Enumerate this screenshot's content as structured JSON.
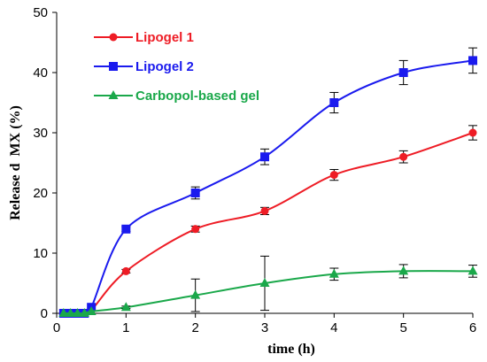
{
  "chart_data": {
    "type": "line",
    "xlabel": "time (h)",
    "ylabel": "Release d  MX (%)",
    "xlim": [
      0,
      6
    ],
    "ylim": [
      0,
      50
    ],
    "xticks": [
      "0",
      "1",
      "2",
      "3",
      "4",
      "5",
      "6"
    ],
    "yticks": [
      "0",
      "10",
      "20",
      "30",
      "40",
      "50"
    ],
    "grid": false,
    "legend_position": "top-left",
    "series": [
      {
        "name": "Lipogel 1",
        "color": "#ee1c25",
        "marker": "circle",
        "x": [
          0.1,
          0.2,
          0.3,
          0.4,
          0.5,
          1,
          2,
          3,
          4,
          5,
          6
        ],
        "y": [
          0,
          0,
          0,
          0,
          0.5,
          7,
          14,
          17,
          23,
          26,
          30
        ],
        "err": [
          0,
          0,
          0,
          0,
          0,
          0.3,
          0.5,
          0.6,
          0.9,
          1.0,
          1.2
        ]
      },
      {
        "name": "Lipogel 2",
        "color": "#1a1aee",
        "marker": "square",
        "x": [
          0.1,
          0.2,
          0.3,
          0.4,
          0.5,
          1,
          2,
          3,
          4,
          5,
          6
        ],
        "y": [
          0,
          0,
          0,
          0,
          1,
          14,
          20,
          26,
          35,
          40,
          42
        ],
        "err": [
          0,
          0,
          0,
          0,
          0,
          0.4,
          1.0,
          1.3,
          1.7,
          2.0,
          2.1
        ]
      },
      {
        "name": "Carbopol-based gel",
        "color": "#1aa84a",
        "marker": "triangle",
        "x": [
          0.1,
          0.2,
          0.3,
          0.4,
          0.5,
          1,
          2,
          3,
          4,
          5,
          6
        ],
        "y": [
          0,
          0,
          0,
          0,
          0.3,
          1,
          3,
          5,
          6.5,
          7,
          7
        ],
        "err": [
          0,
          0,
          0,
          0,
          0,
          0.2,
          2.7,
          4.5,
          1.0,
          1.1,
          1.0
        ]
      }
    ]
  }
}
